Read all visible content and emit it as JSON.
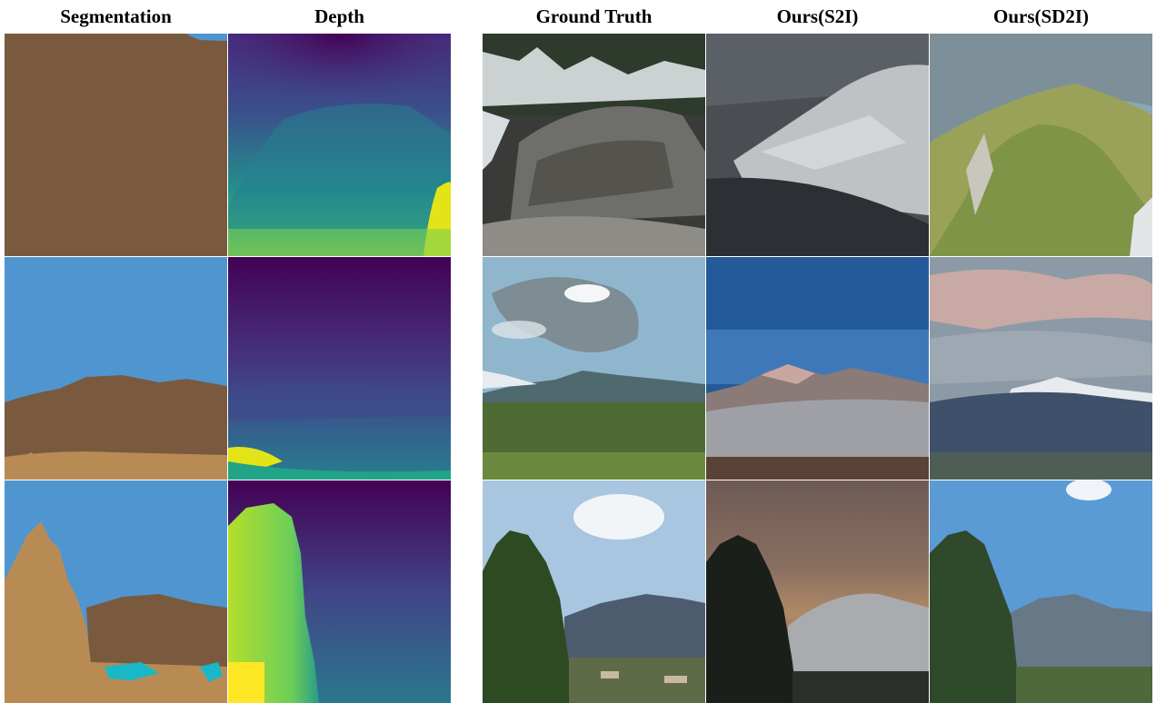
{
  "headers": {
    "segmentation": "Segmentation",
    "depth": "Depth",
    "ground_truth": "Ground Truth",
    "ours_s2i": "Ours(S2I)",
    "ours_sd2i": "Ours(SD2I)"
  },
  "colors": {
    "seg_mountain": "#7A5A3E",
    "seg_sky": "#4F96D0",
    "seg_tree": "#B88B55",
    "seg_water": "#19B8C8",
    "depth_far": "#440154",
    "depth_mid": "#2A788E",
    "depth_near": "#FDE725"
  },
  "rows": [
    "row-1",
    "row-2",
    "row-3"
  ]
}
